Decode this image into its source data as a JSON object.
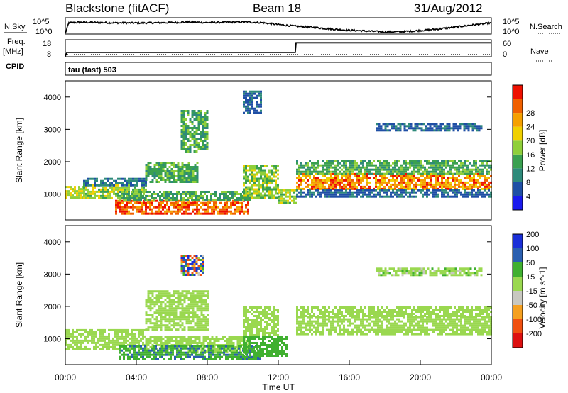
{
  "header": {
    "station": "Blackstone (fitACF)",
    "beam": "Beam 18",
    "date": "31/Aug/2012"
  },
  "left_labels": {
    "nsky": "N.Sky",
    "freq_line1": "Freq.",
    "freq_line2": "[MHz]",
    "cpid": "CPID"
  },
  "right_labels": {
    "nsearch": "N.Search",
    "nave": "Nave"
  },
  "mode_label": "tau (fast) 503",
  "colors": {
    "power": [
      "#1a1aee",
      "#1f4fa5",
      "#2e8a7a",
      "#3aa050",
      "#8fcf3a",
      "#f0d000",
      "#f5a000",
      "#f06000",
      "#ee1000"
    ],
    "velocity": [
      "#dd1010",
      "#f05010",
      "#f5a020",
      "#c8c8c0",
      "#9ad850",
      "#40b030",
      "#2a5fb0",
      "#1a2fd8"
    ]
  },
  "chart_data": [
    {
      "type": "line",
      "name": "noise",
      "left_ticks": [
        "10^5",
        "10^0"
      ],
      "right_ticks": [
        "10^5",
        "10^0"
      ],
      "x_range": [
        0,
        24
      ],
      "series": [
        {
          "name": "N.Sky",
          "x": [
            0,
            0.2,
            1,
            2,
            3,
            4,
            5,
            6,
            7,
            8,
            9,
            10,
            11,
            12,
            13,
            14,
            15,
            16,
            17,
            18,
            19,
            20,
            21,
            22,
            23,
            24
          ],
          "y": [
            0.0,
            0.75,
            0.78,
            0.76,
            0.74,
            0.73,
            0.74,
            0.76,
            0.8,
            0.76,
            0.78,
            0.8,
            0.76,
            0.62,
            0.5,
            0.42,
            0.3,
            0.22,
            0.16,
            0.1,
            0.12,
            0.2,
            0.3,
            0.45,
            0.6,
            0.74
          ]
        }
      ]
    },
    {
      "type": "line",
      "name": "frequency",
      "left_ticks": [
        "18",
        "8"
      ],
      "right_ticks": [
        "60",
        "0"
      ],
      "series": [
        {
          "name": "Freq.",
          "x": [
            0,
            0.1,
            12.95,
            13.0,
            24
          ],
          "y": [
            8,
            10.3,
            10.3,
            16.5,
            16.5
          ]
        },
        {
          "name": "Nave",
          "x": [
            0,
            24
          ],
          "y": [
            1.5,
            1.5
          ]
        }
      ]
    },
    {
      "type": "heatmap",
      "title": "Power",
      "ylabel": "Slant Range [km]",
      "xlim": [
        0,
        24
      ],
      "ylim": [
        200,
        4500
      ],
      "y_ticks": [
        1000,
        2000,
        3000,
        4000
      ],
      "colorbar_label": "Power [dB]",
      "colorbar_ticks": [
        "4",
        "8",
        "12",
        "16",
        "20",
        "24",
        "28"
      ],
      "regions": [
        {
          "t0": 0.0,
          "t1": 1.0,
          "r0": 860,
          "r1": 1250,
          "v": [
            16,
            24
          ]
        },
        {
          "t0": 1.0,
          "t1": 4.5,
          "r0": 880,
          "r1": 1300,
          "v": [
            14,
            22
          ]
        },
        {
          "t0": 1.0,
          "t1": 4.5,
          "r0": 1300,
          "r1": 1500,
          "v": [
            6,
            12
          ]
        },
        {
          "t0": 2.8,
          "t1": 10.3,
          "r0": 420,
          "r1": 820,
          "v": [
            26,
            32
          ]
        },
        {
          "t0": 3.0,
          "t1": 10.5,
          "r0": 820,
          "r1": 1100,
          "v": [
            10,
            18
          ]
        },
        {
          "t0": 4.5,
          "t1": 7.5,
          "r0": 1400,
          "r1": 2000,
          "v": [
            10,
            18
          ]
        },
        {
          "t0": 6.5,
          "t1": 8.0,
          "r0": 2300,
          "r1": 3600,
          "v": [
            8,
            20
          ]
        },
        {
          "t0": 10.0,
          "t1": 12.0,
          "r0": 900,
          "r1": 1900,
          "v": [
            12,
            22
          ]
        },
        {
          "t0": 10.0,
          "t1": 11.0,
          "r0": 3500,
          "r1": 4200,
          "v": [
            4,
            10
          ]
        },
        {
          "t0": 12.0,
          "t1": 13.0,
          "r0": 700,
          "r1": 1150,
          "v": [
            14,
            22
          ]
        },
        {
          "t0": 13.0,
          "t1": 24.0,
          "r0": 1150,
          "r1": 1650,
          "v": [
            22,
            32
          ]
        },
        {
          "t0": 13.0,
          "t1": 24.0,
          "r0": 1650,
          "r1": 2050,
          "v": [
            10,
            18
          ]
        },
        {
          "t0": 13.0,
          "t1": 24.0,
          "r0": 900,
          "r1": 1150,
          "v": [
            4,
            10
          ]
        },
        {
          "t0": 17.5,
          "t1": 23.5,
          "r0": 2950,
          "r1": 3200,
          "v": [
            4,
            10
          ]
        }
      ]
    },
    {
      "type": "heatmap",
      "title": "Velocity",
      "ylabel": "Slant Range [km]",
      "xlabel": "Time UT",
      "xlim": [
        0,
        24
      ],
      "ylim": [
        200,
        4500
      ],
      "y_ticks": [
        1000,
        2000,
        3000,
        4000
      ],
      "x_ticks": [
        "00:00",
        "04:00",
        "08:00",
        "12:00",
        "16:00",
        "20:00",
        "00:00"
      ],
      "colorbar_label": "Velocity [m s^-1]",
      "colorbar_ticks": [
        "-200",
        "-100",
        "-50",
        "-15",
        "15",
        "50",
        "100",
        "200"
      ],
      "regions": [
        {
          "t0": 0.0,
          "t1": 4.5,
          "r0": 700,
          "r1": 1300,
          "v": [
            -10,
            10
          ]
        },
        {
          "t0": 4.5,
          "t1": 10.5,
          "r0": 600,
          "r1": 1100,
          "v": [
            -5,
            5
          ]
        },
        {
          "t0": 3.0,
          "t1": 11.0,
          "r0": 400,
          "r1": 800,
          "v": [
            25,
            60
          ]
        },
        {
          "t0": 10.0,
          "t1": 12.5,
          "r0": 500,
          "r1": 1100,
          "v": [
            20,
            50
          ]
        },
        {
          "t0": 10.0,
          "t1": 12.0,
          "r0": 1100,
          "r1": 2000,
          "v": [
            -10,
            10
          ]
        },
        {
          "t0": 4.5,
          "t1": 8.0,
          "r0": 1300,
          "r1": 2500,
          "v": [
            -10,
            10
          ]
        },
        {
          "t0": 6.5,
          "t1": 7.8,
          "r0": 3000,
          "r1": 3600,
          "v": [
            -200,
            200
          ]
        },
        {
          "t0": 13.0,
          "t1": 24.0,
          "r0": 1150,
          "r1": 1700,
          "v": [
            -10,
            10
          ]
        },
        {
          "t0": 13.0,
          "t1": 24.0,
          "r0": 1700,
          "r1": 2000,
          "v": [
            -12,
            12
          ]
        },
        {
          "t0": 17.5,
          "t1": 23.5,
          "r0": 2950,
          "r1": 3200,
          "v": [
            -20,
            20
          ]
        }
      ]
    }
  ]
}
